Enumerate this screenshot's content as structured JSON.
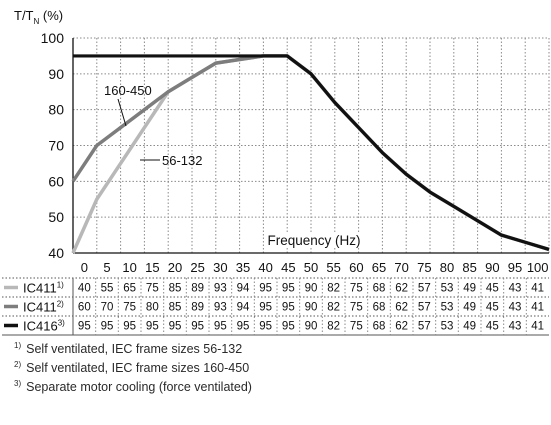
{
  "chart_data": {
    "type": "line",
    "y_axis_label": "T/TN (%)",
    "y_axis_label_main": "T/T",
    "y_axis_label_sub": "N",
    "y_axis_label_unit": " (%)",
    "xlabel": "Frequency (Hz)",
    "ylim": [
      40,
      100
    ],
    "yticks": [
      40,
      50,
      60,
      70,
      80,
      90,
      100
    ],
    "x": [
      0,
      5,
      10,
      15,
      20,
      25,
      30,
      35,
      40,
      45,
      50,
      55,
      60,
      65,
      70,
      75,
      80,
      85,
      90,
      95,
      100
    ],
    "series": [
      {
        "name": "IC411",
        "sup": "1)",
        "color": "#b8b8b8",
        "values": [
          40,
          55,
          65,
          75,
          85,
          89,
          93,
          94,
          95,
          95,
          90,
          82,
          75,
          68,
          62,
          57,
          53,
          49,
          45,
          43,
          41
        ]
      },
      {
        "name": "IC411",
        "sup": "2)",
        "color": "#7d7d7d",
        "values": [
          60,
          70,
          75,
          80,
          85,
          89,
          93,
          94,
          95,
          95,
          90,
          82,
          75,
          68,
          62,
          57,
          53,
          49,
          45,
          43,
          41
        ]
      },
      {
        "name": "IC416",
        "sup": "3)",
        "color": "#111111",
        "values": [
          95,
          95,
          95,
          95,
          95,
          95,
          95,
          95,
          95,
          95,
          90,
          82,
          75,
          68,
          62,
          57,
          53,
          49,
          45,
          43,
          41
        ]
      }
    ],
    "annotations": [
      "160-450",
      "56-132"
    ],
    "grid": true
  },
  "footnotes": [
    {
      "mark": "1)",
      "text": "Self ventilated, IEC frame sizes 56-132"
    },
    {
      "mark": "2)",
      "text": "Self ventilated, IEC frame sizes 160-450"
    },
    {
      "mark": "3)",
      "text": "Separate motor cooling (force ventilated)"
    }
  ]
}
